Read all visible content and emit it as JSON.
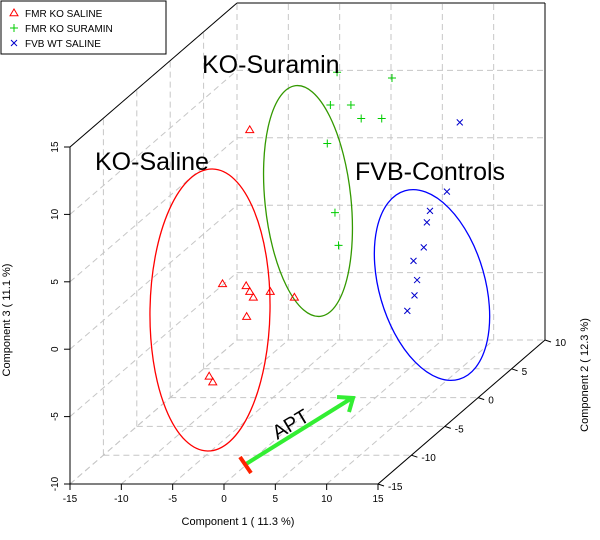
{
  "chart_data": {
    "type": "scatter",
    "subtype": "3d-scatter",
    "xlabel": "Component 1 ( 11.3 %)",
    "ylabel": "Component 2 ( 12.3 %)",
    "zlabel": "Component 3 ( 11.1 %)",
    "x_ticks": [
      "-15",
      "-10",
      "-5",
      "0",
      "5",
      "10",
      "15"
    ],
    "y_ticks": [
      "-15",
      "-10",
      "-5",
      "0",
      "5",
      "10"
    ],
    "z_ticks": [
      "-10",
      "-5",
      "0",
      "5",
      "10",
      "15"
    ],
    "xlim": [
      -15,
      15
    ],
    "ylim": [
      -15,
      10
    ],
    "zlim": [
      -10,
      15
    ],
    "grid": true,
    "legend_position": "top-left",
    "legend": [
      {
        "label": "FMR KO SALINE",
        "color": "#ff0000",
        "marker": "triangle"
      },
      {
        "label": "FMR KO SURAMIN",
        "color": "#00cc00",
        "marker": "plus"
      },
      {
        "label": "FVB WT SALINE",
        "color": "#0000cc",
        "marker": "x"
      }
    ],
    "clusters": [
      {
        "label": "KO-Saline",
        "color": "#ff0000"
      },
      {
        "label": "KO-Suramin",
        "color": "#339900"
      },
      {
        "label": "FVB-Controls",
        "color": "#0000ff"
      }
    ],
    "arrow": {
      "label": "APT",
      "color": "#33ee33",
      "tail_color": "#ff0000"
    },
    "series": [
      {
        "name": "FMR KO SALINE",
        "color": "#ff0000",
        "marker": "triangle",
        "points": [
          {
            "x": -4,
            "y": -5,
            "z": 12
          },
          {
            "x": -6,
            "y": -6,
            "z": 1
          },
          {
            "x": -5,
            "y": -4,
            "z": 0
          },
          {
            "x": -4,
            "y": -5,
            "z": 0
          },
          {
            "x": -3,
            "y": -6,
            "z": 0
          },
          {
            "x": -2,
            "y": -5,
            "z": 0
          },
          {
            "x": 1,
            "y": -6,
            "z": 0
          },
          {
            "x": -3,
            "y": -7,
            "z": -1
          },
          {
            "x": -6,
            "y": -8,
            "z": -5
          },
          {
            "x": -5,
            "y": -9,
            "z": -5
          }
        ]
      },
      {
        "name": "FMR KO SURAMIN",
        "color": "#00cc00",
        "marker": "plus",
        "points": [
          {
            "x": -2,
            "y": 5,
            "z": 12
          },
          {
            "x": 4,
            "y": 4,
            "z": 12
          },
          {
            "x": -2,
            "y": 4,
            "z": 10
          },
          {
            "x": 0,
            "y": 4,
            "z": 10
          },
          {
            "x": 1,
            "y": 4,
            "z": 9
          },
          {
            "x": -1,
            "y": 2,
            "z": 8
          },
          {
            "x": 3,
            "y": 4,
            "z": 9
          },
          {
            "x": 3,
            "y": -3,
            "z": 5
          },
          {
            "x": 4,
            "y": -4,
            "z": 3
          }
        ]
      },
      {
        "name": "FVB WT SALINE",
        "color": "#0000cc",
        "marker": "x",
        "points": [
          {
            "x": 8,
            "y": 8,
            "z": 7
          },
          {
            "x": 9,
            "y": 2,
            "z": 3
          },
          {
            "x": 10,
            "y": 3,
            "z": 4
          },
          {
            "x": 10,
            "y": 0,
            "z": 3
          },
          {
            "x": 11,
            "y": -2,
            "z": 2
          },
          {
            "x": 10,
            "y": -2,
            "z": 1
          },
          {
            "x": 11,
            "y": -3,
            "z": 0
          },
          {
            "x": 12,
            "y": -6,
            "z": -1
          },
          {
            "x": 14,
            "y": -8,
            "z": 1
          }
        ]
      }
    ]
  }
}
